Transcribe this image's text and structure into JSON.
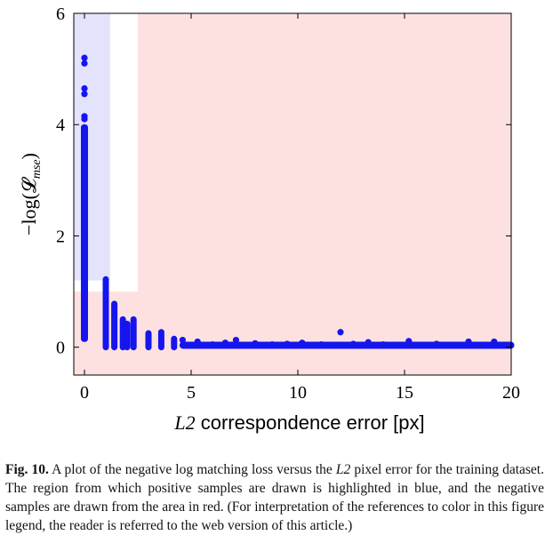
{
  "chart_data": {
    "type": "scatter",
    "xlabel_prefix": "L2",
    "xlabel_text": " correspondence error ",
    "xlabel_unit": "[px]",
    "ylabel": "−log(𝓛",
    "ylabel_sub": "mse",
    "ylabel_close": ")",
    "xlim": [
      -0.5,
      20
    ],
    "ylim": [
      -0.5,
      6
    ],
    "x_ticks": [
      0,
      5,
      10,
      15,
      20
    ],
    "y_ticks": [
      0,
      2,
      4,
      6
    ],
    "regions": [
      {
        "name": "positive",
        "color": "#e3e3fd",
        "x": [
          -0.5,
          1.2
        ],
        "y": [
          1.2,
          6
        ]
      },
      {
        "name": "negative",
        "color": "#fde1e1",
        "x_outer": [
          -0.5,
          20
        ],
        "y_outer": [
          -0.5,
          1.0
        ],
        "x_upper": [
          2.5,
          20
        ],
        "y_upper": [
          1.0,
          6
        ]
      }
    ],
    "point_color": "#1515ee",
    "stripes": [
      {
        "x": 0,
        "ymin": 0.15,
        "ymax": 3.95
      },
      {
        "x": 1,
        "ymin": 0.0,
        "ymax": 1.22
      },
      {
        "x": 1.4,
        "ymin": 0.0,
        "ymax": 0.78
      },
      {
        "x": 1.8,
        "ymin": 0.0,
        "ymax": 0.5
      },
      {
        "x": 2.0,
        "ymin": 0.0,
        "ymax": 0.42
      },
      {
        "x": 2.3,
        "ymin": 0.0,
        "ymax": 0.5
      },
      {
        "x": 3.0,
        "ymin": 0.0,
        "ymax": 0.25
      },
      {
        "x": 3.6,
        "ymin": 0.0,
        "ymax": 0.27
      },
      {
        "x": 4.2,
        "ymin": 0.0,
        "ymax": 0.15
      }
    ],
    "points": [
      {
        "x": 0,
        "y": 5.2
      },
      {
        "x": 0,
        "y": 5.1
      },
      {
        "x": 0,
        "y": 4.65
      },
      {
        "x": 0,
        "y": 4.55
      },
      {
        "x": 0,
        "y": 4.15
      },
      {
        "x": 0,
        "y": 4.1
      },
      {
        "x": 4.6,
        "y": 0.13
      },
      {
        "x": 5.3,
        "y": 0.1
      },
      {
        "x": 6.0,
        "y": 0.05
      },
      {
        "x": 6.6,
        "y": 0.08
      },
      {
        "x": 7.1,
        "y": 0.13
      },
      {
        "x": 8.0,
        "y": 0.07
      },
      {
        "x": 8.8,
        "y": 0.05
      },
      {
        "x": 9.5,
        "y": 0.06
      },
      {
        "x": 10.2,
        "y": 0.08
      },
      {
        "x": 11.1,
        "y": 0.05
      },
      {
        "x": 12.0,
        "y": 0.27
      },
      {
        "x": 12.6,
        "y": 0.06
      },
      {
        "x": 13.3,
        "y": 0.09
      },
      {
        "x": 14.0,
        "y": 0.05
      },
      {
        "x": 15.2,
        "y": 0.11
      },
      {
        "x": 16.5,
        "y": 0.06
      },
      {
        "x": 18.0,
        "y": 0.1
      },
      {
        "x": 19.2,
        "y": 0.1
      },
      {
        "x": 19.9,
        "y": 0.04
      }
    ],
    "baseline_band": {
      "xmin": 4.6,
      "xmax": 20.0,
      "y": 0.02
    }
  },
  "caption": {
    "label": "Fig. 10.",
    "text_before": " A plot of the negative log matching loss versus the ",
    "italic": "L2",
    "text_after": " pixel error for the training dataset. The region from which positive samples are drawn is highlighted in blue, and the negative samples are drawn from the area in red. (For interpretation of the references to color in this figure legend, the reader is referred to the web version of this article.)"
  }
}
